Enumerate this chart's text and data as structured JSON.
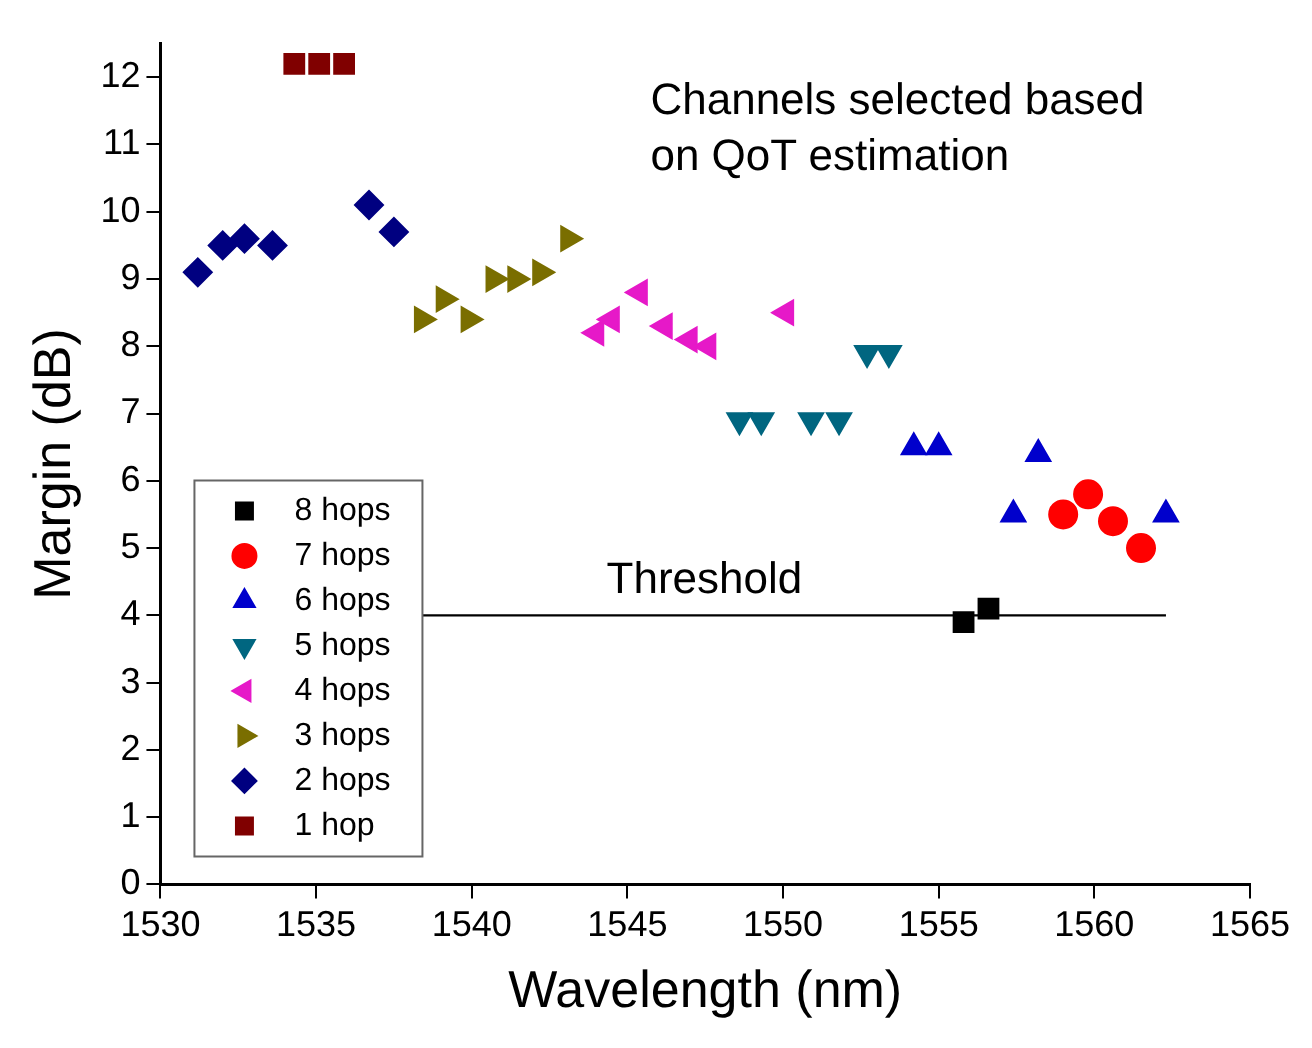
{
  "chart_data": {
    "type": "scatter",
    "xlabel": "Wavelength (nm)",
    "ylabel": "Margin (dB)",
    "xlim": [
      1530,
      1565
    ],
    "xticks": [
      1530,
      1535,
      1540,
      1545,
      1550,
      1555,
      1560,
      1565
    ],
    "ylim": [
      0,
      12.5
    ],
    "yticks": [
      0,
      1,
      2,
      3,
      4,
      5,
      6,
      7,
      8,
      9,
      10,
      11,
      12
    ],
    "grid": false,
    "legend": "bottom left",
    "annotations": [
      "Channels selected based\non QoT estimation"
    ],
    "ref_lines": [
      {
        "axis": "y",
        "value": 4,
        "label": "Threshold",
        "color": "#000000"
      }
    ],
    "series": [
      {
        "name": "8 hops",
        "color": "#000000",
        "marker": "square",
        "x": [
          1555.8,
          1556.6
        ],
        "values": [
          3.9,
          4.1
        ]
      },
      {
        "name": "7 hops",
        "color": "#ff0000",
        "marker": "circle",
        "x": [
          1559.0,
          1559.8,
          1560.6,
          1561.5
        ],
        "values": [
          5.5,
          5.8,
          5.4,
          5.0
        ]
      },
      {
        "name": "6 hops",
        "color": "#0000cc",
        "marker": "triangle",
        "x": [
          1554.2,
          1555.0,
          1557.4,
          1558.2,
          1562.3
        ],
        "values": [
          6.5,
          6.5,
          5.5,
          6.4,
          5.5
        ]
      },
      {
        "name": "5 hops",
        "color": "#006680",
        "marker": "triangle-down",
        "x": [
          1548.6,
          1549.3,
          1550.9,
          1551.8,
          1552.7,
          1553.4
        ],
        "values": [
          6.9,
          6.9,
          6.9,
          6.9,
          7.9,
          7.9
        ]
      },
      {
        "name": "4 hops",
        "color": "#e619c8",
        "marker": "triangle-left",
        "x": [
          1544.0,
          1544.5,
          1545.4,
          1546.2,
          1547.0,
          1547.6,
          1550.1
        ],
        "values": [
          8.2,
          8.4,
          8.8,
          8.3,
          8.1,
          8.0,
          8.5
        ]
      },
      {
        "name": "3 hops",
        "color": "#7a6e00",
        "marker": "triangle-right",
        "x": [
          1538.4,
          1539.1,
          1539.9,
          1540.7,
          1541.4,
          1542.2,
          1543.1
        ],
        "values": [
          8.4,
          8.7,
          8.4,
          9.0,
          9.0,
          9.1,
          9.6
        ]
      },
      {
        "name": "2 hops",
        "color": "#000080",
        "marker": "diamond",
        "x": [
          1531.2,
          1532.0,
          1532.7,
          1533.6,
          1536.7,
          1537.5
        ],
        "values": [
          9.1,
          9.5,
          9.6,
          9.5,
          10.1,
          9.7
        ]
      },
      {
        "name": "1 hop",
        "color": "#800000",
        "marker": "square",
        "x": [
          1534.3,
          1535.1,
          1535.9
        ],
        "values": [
          12.2,
          12.2,
          12.2
        ]
      }
    ]
  }
}
